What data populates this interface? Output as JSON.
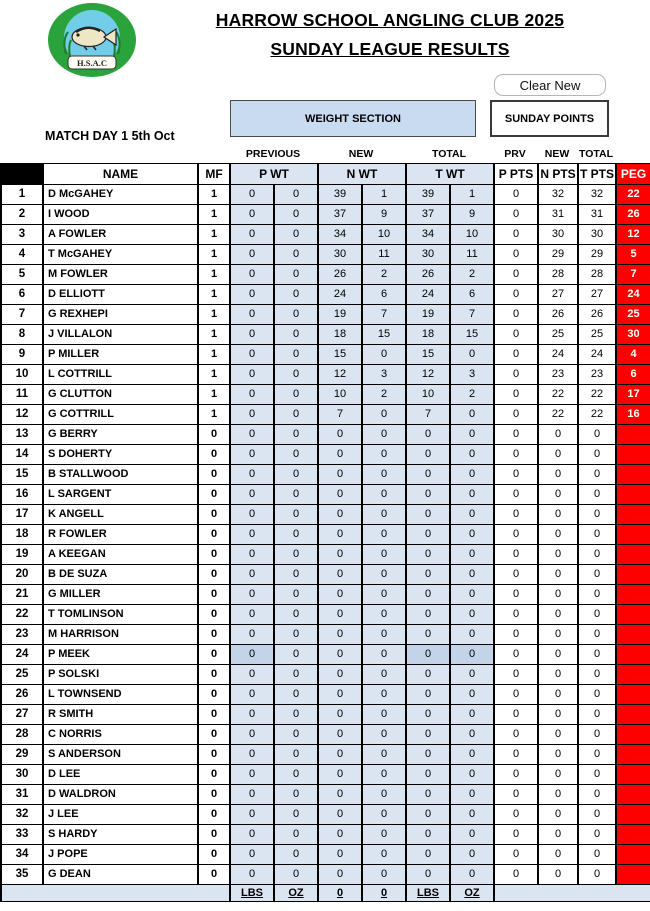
{
  "header": {
    "title_line1": "HARROW SCHOOL ANGLING CLUB 2025",
    "title_line2": "SUNDAY LEAGUE RESULTS",
    "logo_text": "H.S.A.C",
    "clear_button_label": "Clear New",
    "match_day": "MATCH DAY 1 5th Oct",
    "weight_section_label": "WEIGHT SECTION",
    "sunday_points_label": "SUNDAY POINTS"
  },
  "group_labels": [
    "PREVIOUS",
    "NEW",
    "TOTAL",
    "PRV",
    "NEW",
    "TOTAL"
  ],
  "columns": {
    "name": "NAME",
    "mf": "MF",
    "p_wt": "P  WT",
    "n_wt": "N WT",
    "t_wt": "T WT",
    "p_pts": "P PTS",
    "n_pts": "N PTS",
    "t_pts": "T PTS",
    "peg": "PEG"
  },
  "rows": [
    {
      "num": 1,
      "name": "D McGAHEY",
      "mf": 1,
      "p_wt": [
        0,
        0
      ],
      "n_wt": [
        39,
        1
      ],
      "t_wt": [
        39,
        1
      ],
      "p_pts": 0,
      "n_pts": 32,
      "t_pts": 32,
      "peg": "22"
    },
    {
      "num": 2,
      "name": "I WOOD",
      "mf": 1,
      "p_wt": [
        0,
        0
      ],
      "n_wt": [
        37,
        9
      ],
      "t_wt": [
        37,
        9
      ],
      "p_pts": 0,
      "n_pts": 31,
      "t_pts": 31,
      "peg": "26"
    },
    {
      "num": 3,
      "name": "A FOWLER",
      "mf": 1,
      "p_wt": [
        0,
        0
      ],
      "n_wt": [
        34,
        10
      ],
      "t_wt": [
        34,
        10
      ],
      "p_pts": 0,
      "n_pts": 30,
      "t_pts": 30,
      "peg": "12"
    },
    {
      "num": 4,
      "name": "T McGAHEY",
      "mf": 1,
      "p_wt": [
        0,
        0
      ],
      "n_wt": [
        30,
        11
      ],
      "t_wt": [
        30,
        11
      ],
      "p_pts": 0,
      "n_pts": 29,
      "t_pts": 29,
      "peg": "5"
    },
    {
      "num": 5,
      "name": "M FOWLER",
      "mf": 1,
      "p_wt": [
        0,
        0
      ],
      "n_wt": [
        26,
        2
      ],
      "t_wt": [
        26,
        2
      ],
      "p_pts": 0,
      "n_pts": 28,
      "t_pts": 28,
      "peg": "7"
    },
    {
      "num": 6,
      "name": "D ELLIOTT",
      "mf": 1,
      "p_wt": [
        0,
        0
      ],
      "n_wt": [
        24,
        6
      ],
      "t_wt": [
        24,
        6
      ],
      "p_pts": 0,
      "n_pts": 27,
      "t_pts": 27,
      "peg": "24"
    },
    {
      "num": 7,
      "name": "G REXHEPI",
      "mf": 1,
      "p_wt": [
        0,
        0
      ],
      "n_wt": [
        19,
        7
      ],
      "t_wt": [
        19,
        7
      ],
      "p_pts": 0,
      "n_pts": 26,
      "t_pts": 26,
      "peg": "25"
    },
    {
      "num": 8,
      "name": "J VILLALON",
      "mf": 1,
      "p_wt": [
        0,
        0
      ],
      "n_wt": [
        18,
        15
      ],
      "t_wt": [
        18,
        15
      ],
      "p_pts": 0,
      "n_pts": 25,
      "t_pts": 25,
      "peg": "30"
    },
    {
      "num": 9,
      "name": "P MILLER",
      "mf": 1,
      "p_wt": [
        0,
        0
      ],
      "n_wt": [
        15,
        0
      ],
      "t_wt": [
        15,
        0
      ],
      "p_pts": 0,
      "n_pts": 24,
      "t_pts": 24,
      "peg": "4"
    },
    {
      "num": 10,
      "name": "L COTTRILL",
      "mf": 1,
      "p_wt": [
        0,
        0
      ],
      "n_wt": [
        12,
        3
      ],
      "t_wt": [
        12,
        3
      ],
      "p_pts": 0,
      "n_pts": 23,
      "t_pts": 23,
      "peg": "6"
    },
    {
      "num": 11,
      "name": "G CLUTTON",
      "mf": 1,
      "p_wt": [
        0,
        0
      ],
      "n_wt": [
        10,
        2
      ],
      "t_wt": [
        10,
        2
      ],
      "p_pts": 0,
      "n_pts": 22,
      "t_pts": 22,
      "peg": "17"
    },
    {
      "num": 12,
      "name": "G COTTRILL",
      "mf": 1,
      "p_wt": [
        0,
        0
      ],
      "n_wt": [
        7,
        0
      ],
      "t_wt": [
        7,
        0
      ],
      "p_pts": 0,
      "n_pts": 22,
      "t_pts": 22,
      "peg": "16"
    },
    {
      "num": 13,
      "name": "G BERRY",
      "mf": 0,
      "p_wt": [
        0,
        0
      ],
      "n_wt": [
        0,
        0
      ],
      "t_wt": [
        0,
        0
      ],
      "p_pts": 0,
      "n_pts": 0,
      "t_pts": 0,
      "peg": ""
    },
    {
      "num": 14,
      "name": "S DOHERTY",
      "mf": 0,
      "p_wt": [
        0,
        0
      ],
      "n_wt": [
        0,
        0
      ],
      "t_wt": [
        0,
        0
      ],
      "p_pts": 0,
      "n_pts": 0,
      "t_pts": 0,
      "peg": ""
    },
    {
      "num": 15,
      "name": "B STALLWOOD",
      "mf": 0,
      "p_wt": [
        0,
        0
      ],
      "n_wt": [
        0,
        0
      ],
      "t_wt": [
        0,
        0
      ],
      "p_pts": 0,
      "n_pts": 0,
      "t_pts": 0,
      "peg": ""
    },
    {
      "num": 16,
      "name": "L SARGENT",
      "mf": 0,
      "p_wt": [
        0,
        0
      ],
      "n_wt": [
        0,
        0
      ],
      "t_wt": [
        0,
        0
      ],
      "p_pts": 0,
      "n_pts": 0,
      "t_pts": 0,
      "peg": ""
    },
    {
      "num": 17,
      "name": "K ANGELL",
      "mf": 0,
      "p_wt": [
        0,
        0
      ],
      "n_wt": [
        0,
        0
      ],
      "t_wt": [
        0,
        0
      ],
      "p_pts": 0,
      "n_pts": 0,
      "t_pts": 0,
      "peg": ""
    },
    {
      "num": 18,
      "name": "R FOWLER",
      "mf": 0,
      "p_wt": [
        0,
        0
      ],
      "n_wt": [
        0,
        0
      ],
      "t_wt": [
        0,
        0
      ],
      "p_pts": 0,
      "n_pts": 0,
      "t_pts": 0,
      "peg": ""
    },
    {
      "num": 19,
      "name": "A KEEGAN",
      "mf": 0,
      "p_wt": [
        0,
        0
      ],
      "n_wt": [
        0,
        0
      ],
      "t_wt": [
        0,
        0
      ],
      "p_pts": 0,
      "n_pts": 0,
      "t_pts": 0,
      "peg": ""
    },
    {
      "num": 20,
      "name": "B DE SUZA",
      "mf": 0,
      "p_wt": [
        0,
        0
      ],
      "n_wt": [
        0,
        0
      ],
      "t_wt": [
        0,
        0
      ],
      "p_pts": 0,
      "n_pts": 0,
      "t_pts": 0,
      "peg": ""
    },
    {
      "num": 21,
      "name": "G MILLER",
      "mf": 0,
      "p_wt": [
        0,
        0
      ],
      "n_wt": [
        0,
        0
      ],
      "t_wt": [
        0,
        0
      ],
      "p_pts": 0,
      "n_pts": 0,
      "t_pts": 0,
      "peg": ""
    },
    {
      "num": 22,
      "name": "T TOMLINSON",
      "mf": 0,
      "p_wt": [
        0,
        0
      ],
      "n_wt": [
        0,
        0
      ],
      "t_wt": [
        0,
        0
      ],
      "p_pts": 0,
      "n_pts": 0,
      "t_pts": 0,
      "peg": ""
    },
    {
      "num": 23,
      "name": "M HARRISON",
      "mf": 0,
      "p_wt": [
        0,
        0
      ],
      "n_wt": [
        0,
        0
      ],
      "t_wt": [
        0,
        0
      ],
      "p_pts": 0,
      "n_pts": 0,
      "t_pts": 0,
      "peg": ""
    },
    {
      "num": 24,
      "name": "P MEEK",
      "mf": 0,
      "p_wt": [
        0,
        0
      ],
      "n_wt": [
        0,
        0
      ],
      "t_wt": [
        0,
        0
      ],
      "p_pts": 0,
      "n_pts": 0,
      "t_pts": 0,
      "peg": "",
      "dim": [
        0,
        4,
        5
      ]
    },
    {
      "num": 25,
      "name": "P SOLSKI",
      "mf": 0,
      "p_wt": [
        0,
        0
      ],
      "n_wt": [
        0,
        0
      ],
      "t_wt": [
        0,
        0
      ],
      "p_pts": 0,
      "n_pts": 0,
      "t_pts": 0,
      "peg": ""
    },
    {
      "num": 26,
      "name": "L TOWNSEND",
      "mf": 0,
      "p_wt": [
        0,
        0
      ],
      "n_wt": [
        0,
        0
      ],
      "t_wt": [
        0,
        0
      ],
      "p_pts": 0,
      "n_pts": 0,
      "t_pts": 0,
      "peg": ""
    },
    {
      "num": 27,
      "name": "R SMITH",
      "mf": 0,
      "p_wt": [
        0,
        0
      ],
      "n_wt": [
        0,
        0
      ],
      "t_wt": [
        0,
        0
      ],
      "p_pts": 0,
      "n_pts": 0,
      "t_pts": 0,
      "peg": ""
    },
    {
      "num": 28,
      "name": "C NORRIS",
      "mf": 0,
      "p_wt": [
        0,
        0
      ],
      "n_wt": [
        0,
        0
      ],
      "t_wt": [
        0,
        0
      ],
      "p_pts": 0,
      "n_pts": 0,
      "t_pts": 0,
      "peg": ""
    },
    {
      "num": 29,
      "name": "S ANDERSON",
      "mf": 0,
      "p_wt": [
        0,
        0
      ],
      "n_wt": [
        0,
        0
      ],
      "t_wt": [
        0,
        0
      ],
      "p_pts": 0,
      "n_pts": 0,
      "t_pts": 0,
      "peg": ""
    },
    {
      "num": 30,
      "name": "D LEE",
      "mf": 0,
      "p_wt": [
        0,
        0
      ],
      "n_wt": [
        0,
        0
      ],
      "t_wt": [
        0,
        0
      ],
      "p_pts": 0,
      "n_pts": 0,
      "t_pts": 0,
      "peg": ""
    },
    {
      "num": 31,
      "name": "D WALDRON",
      "mf": 0,
      "p_wt": [
        0,
        0
      ],
      "n_wt": [
        0,
        0
      ],
      "t_wt": [
        0,
        0
      ],
      "p_pts": 0,
      "n_pts": 0,
      "t_pts": 0,
      "peg": ""
    },
    {
      "num": 32,
      "name": "J LEE",
      "mf": 0,
      "p_wt": [
        0,
        0
      ],
      "n_wt": [
        0,
        0
      ],
      "t_wt": [
        0,
        0
      ],
      "p_pts": 0,
      "n_pts": 0,
      "t_pts": 0,
      "peg": ""
    },
    {
      "num": 33,
      "name": "S HARDY",
      "mf": 0,
      "p_wt": [
        0,
        0
      ],
      "n_wt": [
        0,
        0
      ],
      "t_wt": [
        0,
        0
      ],
      "p_pts": 0,
      "n_pts": 0,
      "t_pts": 0,
      "peg": ""
    },
    {
      "num": 34,
      "name": "J POPE",
      "mf": 0,
      "p_wt": [
        0,
        0
      ],
      "n_wt": [
        0,
        0
      ],
      "t_wt": [
        0,
        0
      ],
      "p_pts": 0,
      "n_pts": 0,
      "t_pts": 0,
      "peg": ""
    },
    {
      "num": 35,
      "name": "G DEAN",
      "mf": 0,
      "p_wt": [
        0,
        0
      ],
      "n_wt": [
        0,
        0
      ],
      "t_wt": [
        0,
        0
      ],
      "p_pts": 0,
      "n_pts": 0,
      "t_pts": 0,
      "peg": ""
    }
  ],
  "footer_cells": [
    "LBS",
    "OZ",
    "0",
    "0",
    "LBS",
    "OZ"
  ],
  "colors": {
    "cell_blue": "#dbe5f1",
    "cell_blue_dim": "#c3d3e8",
    "box_blue": "#c9dbf0",
    "peg_red": "#ff0000",
    "logo_green": "#2aa33c",
    "logo_water_blue": "#72cde8"
  }
}
